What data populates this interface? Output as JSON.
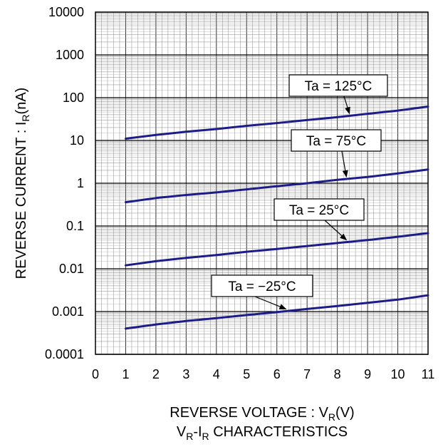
{
  "chart_data": {
    "type": "line",
    "title": "VR-IR CHARACTERISTICS",
    "title_parts": {
      "v": "V",
      "v_sub": "R",
      "dash": "-I",
      "i_sub": "R",
      "rest": " CHARACTERISTICS"
    },
    "xlabel": "REVERSE VOLTAGE : VR(V)",
    "xlabel_parts": {
      "main": "REVERSE VOLTAGE : V",
      "sub": "R",
      "unit": "(V)"
    },
    "ylabel": "REVERSE CURRENT : IR(nA)",
    "ylabel_parts": {
      "main": "REVERSE CURRENT : I",
      "sub": "R",
      "unit": "(nA)"
    },
    "x_scale": "linear",
    "y_scale": "log",
    "xlim": [
      0,
      11
    ],
    "ylim": [
      0.0001,
      10000
    ],
    "x_ticks": [
      0,
      1,
      2,
      3,
      4,
      5,
      6,
      7,
      8,
      9,
      10,
      11
    ],
    "x_tick_labels": [
      "0",
      "1",
      "2",
      "3",
      "4",
      "5",
      "6",
      "7",
      "8",
      "9",
      "10",
      "11"
    ],
    "y_ticks": [
      0.0001,
      0.001,
      0.01,
      0.1,
      1,
      10,
      100,
      1000,
      10000
    ],
    "y_tick_labels": [
      "0.0001",
      "0.001",
      "0.01",
      "0.1",
      "1",
      "10",
      "100",
      "1000",
      "10000"
    ],
    "grid": true,
    "line_color": "#1c1c8a",
    "series": [
      {
        "name": "Ta = 125°C",
        "x": [
          1,
          2,
          3,
          4,
          5,
          6,
          7,
          8,
          9,
          10,
          11
        ],
        "values": [
          11,
          13.5,
          16,
          18.5,
          22,
          25.5,
          30,
          35,
          42,
          50,
          62
        ],
        "label_text": "Ta = 125°C"
      },
      {
        "name": "Ta = 75°C",
        "x": [
          1,
          2,
          3,
          4,
          5,
          6,
          7,
          8,
          9,
          10,
          11
        ],
        "values": [
          0.36,
          0.45,
          0.53,
          0.61,
          0.72,
          0.85,
          1.0,
          1.2,
          1.4,
          1.7,
          2.1
        ],
        "label_text": "Ta = 75°C"
      },
      {
        "name": "Ta = 25°C",
        "x": [
          1,
          2,
          3,
          4,
          5,
          6,
          7,
          8,
          9,
          10,
          11
        ],
        "values": [
          0.012,
          0.015,
          0.018,
          0.021,
          0.025,
          0.029,
          0.034,
          0.04,
          0.047,
          0.056,
          0.068
        ],
        "label_text": "Ta = 25°C"
      },
      {
        "name": "Ta = −25°C",
        "x": [
          1,
          2,
          3,
          4,
          5,
          6,
          7,
          8,
          9,
          10,
          11
        ],
        "values": [
          0.0004,
          0.0005,
          0.0006,
          0.0007,
          0.00083,
          0.00097,
          0.00115,
          0.00135,
          0.0016,
          0.0019,
          0.0024
        ],
        "label_text": "Ta = −25°C"
      }
    ]
  }
}
